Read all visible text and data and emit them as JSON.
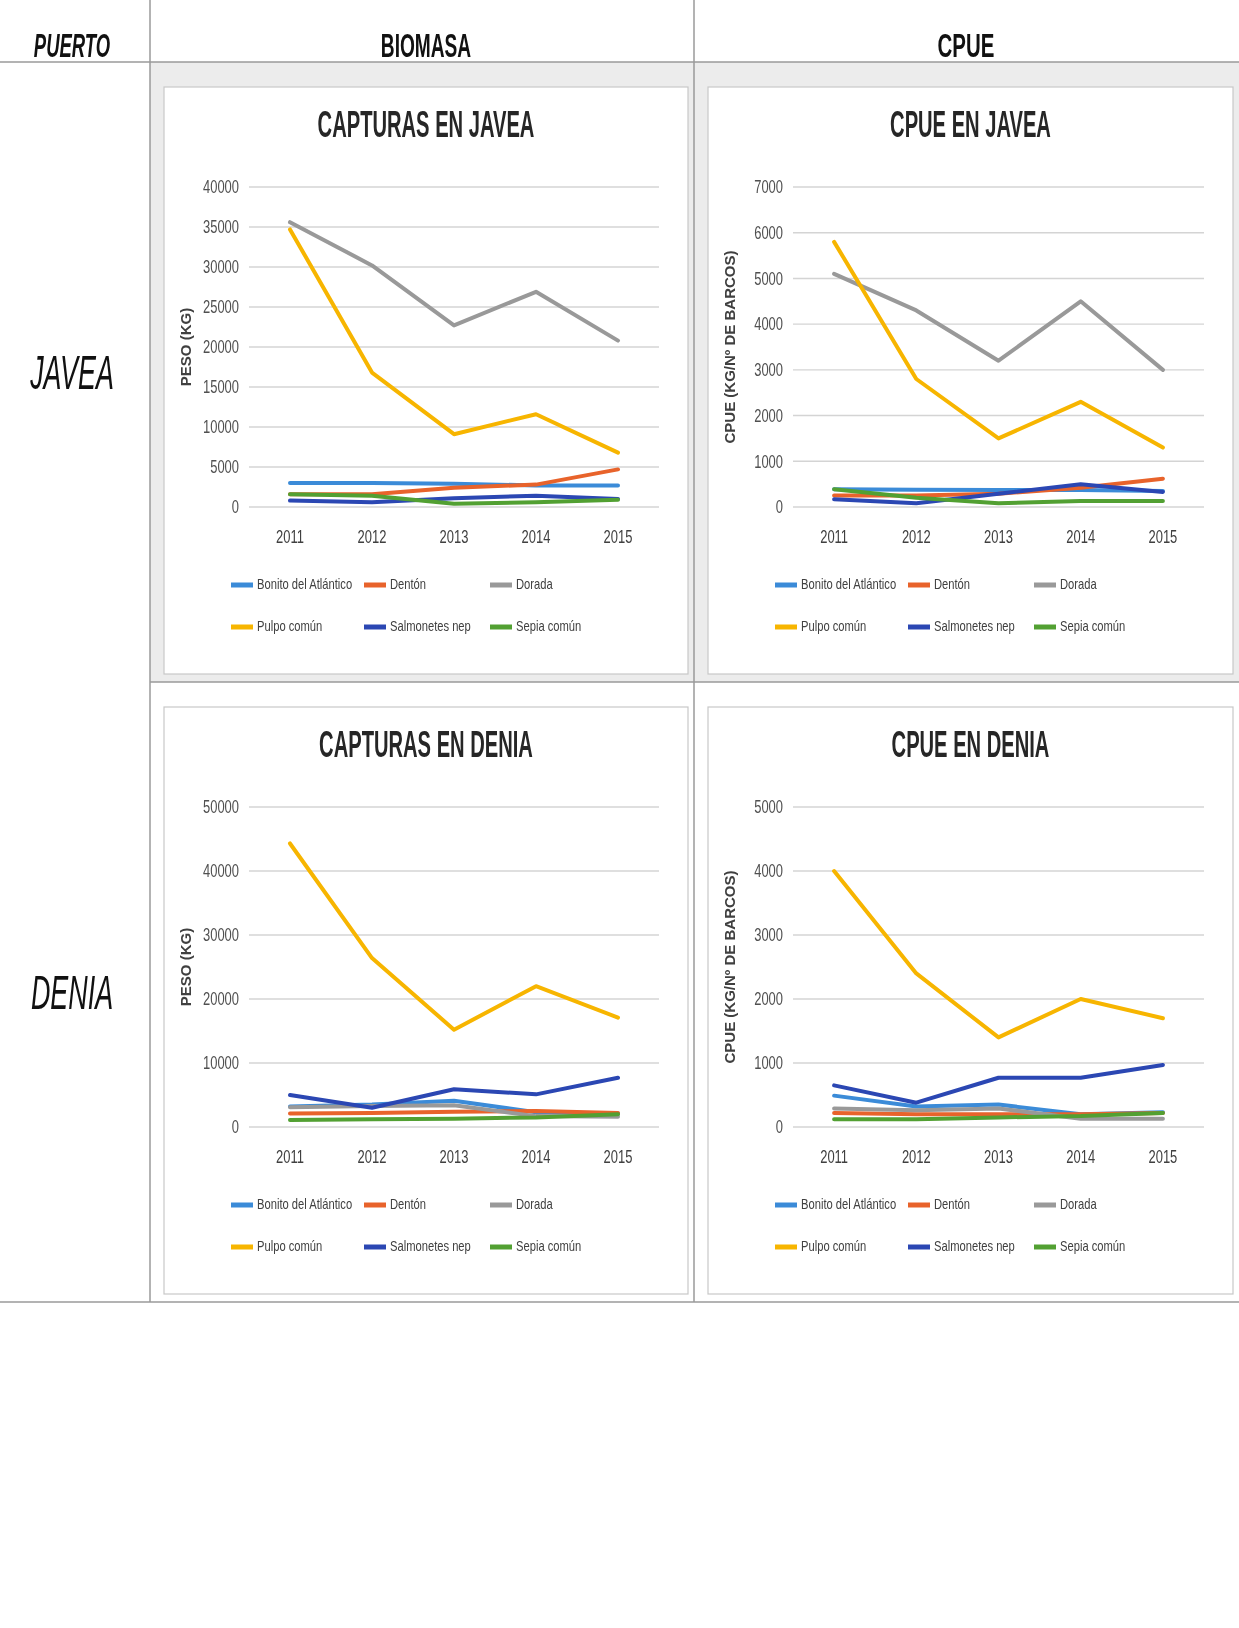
{
  "chart_data": [
    {
      "type": "other",
      "annotations": [
        "PUERTO",
        "BIOMASA",
        "CPUE",
        "JAVEA",
        "DENIA"
      ]
    },
    {
      "type": "line",
      "title": "CAPTURAS EN JAVEA",
      "ylabel": "PESO (KG)",
      "categories": [
        "2011",
        "2012",
        "2013",
        "2014",
        "2015"
      ],
      "ylim": [
        0,
        40000
      ],
      "yticks": [
        0,
        5000,
        10000,
        15000,
        20000,
        25000,
        30000,
        35000,
        40000
      ],
      "grid": "y",
      "legend": "bottom",
      "series": [
        {
          "name": "Bonito del Atlántico",
          "color": "#3b8bd8",
          "values": [
            3000,
            3000,
            2900,
            2700,
            2700
          ]
        },
        {
          "name": "Dentón",
          "color": "#e8632b",
          "values": [
            1600,
            1600,
            2400,
            2800,
            4700
          ]
        },
        {
          "name": "Dorada",
          "color": "#999999",
          "values": [
            35600,
            30200,
            22700,
            26900,
            20800
          ]
        },
        {
          "name": "Pulpo común",
          "color": "#f7b500",
          "values": [
            34700,
            16800,
            9100,
            11600,
            6800
          ]
        },
        {
          "name": "Salmonetes nep",
          "color": "#2b47b3",
          "values": [
            800,
            600,
            1100,
            1400,
            1000
          ]
        },
        {
          "name": "Sepia común",
          "color": "#52a032",
          "values": [
            1600,
            1400,
            400,
            600,
            900
          ]
        }
      ]
    },
    {
      "type": "line",
      "title": "CPUE EN JAVEA",
      "ylabel": "CPUE (KG/Nº DE BARCOS)",
      "categories": [
        "2011",
        "2012",
        "2013",
        "2014",
        "2015"
      ],
      "ylim": [
        0,
        7000
      ],
      "yticks": [
        0,
        1000,
        2000,
        3000,
        4000,
        5000,
        6000,
        7000
      ],
      "grid": "y",
      "legend": "bottom",
      "series": [
        {
          "name": "Bonito del Atlántico",
          "color": "#3b8bd8",
          "values": [
            390,
            380,
            370,
            370,
            350
          ]
        },
        {
          "name": "Dentón",
          "color": "#e8632b",
          "values": [
            250,
            250,
            290,
            420,
            620
          ]
        },
        {
          "name": "Dorada",
          "color": "#999999",
          "values": [
            5100,
            4300,
            3200,
            4500,
            3000
          ]
        },
        {
          "name": "Pulpo común",
          "color": "#f7b500",
          "values": [
            5800,
            2800,
            1500,
            2300,
            1300
          ]
        },
        {
          "name": "Salmonetes nep",
          "color": "#2b47b3",
          "values": [
            170,
            80,
            290,
            500,
            330
          ]
        },
        {
          "name": "Sepia común",
          "color": "#52a032",
          "values": [
            390,
            200,
            80,
            130,
            130
          ]
        }
      ]
    },
    {
      "type": "line",
      "title": "CAPTURAS EN DENIA",
      "ylabel": "PESO (KG)",
      "categories": [
        "2011",
        "2012",
        "2013",
        "2014",
        "2015"
      ],
      "ylim": [
        0,
        50000
      ],
      "yticks": [
        0,
        10000,
        20000,
        30000,
        40000,
        50000
      ],
      "grid": "y",
      "legend": "bottom",
      "series": [
        {
          "name": "Bonito del Atlántico",
          "color": "#3b8bd8",
          "values": [
            3200,
            3500,
            4100,
            2300,
            2100
          ]
        },
        {
          "name": "Dentón",
          "color": "#e8632b",
          "values": [
            2100,
            2200,
            2400,
            2500,
            2200
          ]
        },
        {
          "name": "Dorada",
          "color": "#999999",
          "values": [
            3100,
            3300,
            3400,
            1700,
            1600
          ]
        },
        {
          "name": "Pulpo común",
          "color": "#f7b500",
          "values": [
            44300,
            26400,
            15200,
            22000,
            17100
          ]
        },
        {
          "name": "Salmonetes nep",
          "color": "#2b47b3",
          "values": [
            5000,
            3000,
            5900,
            5100,
            7700
          ]
        },
        {
          "name": "Sepia común",
          "color": "#52a032",
          "values": [
            1100,
            1200,
            1300,
            1500,
            2000
          ]
        }
      ]
    },
    {
      "type": "line",
      "title": "CPUE EN DENIA",
      "ylabel": "CPUE (KG/Nº DE BARCOS)",
      "categories": [
        "2011",
        "2012",
        "2013",
        "2014",
        "2015"
      ],
      "ylim": [
        0,
        5000
      ],
      "yticks": [
        0,
        1000,
        2000,
        3000,
        4000,
        5000
      ],
      "grid": "y",
      "legend": "bottom",
      "series": [
        {
          "name": "Bonito del Atlántico",
          "color": "#3b8bd8",
          "values": [
            490,
            320,
            350,
            200,
            230
          ]
        },
        {
          "name": "Dentón",
          "color": "#e8632b",
          "values": [
            220,
            200,
            200,
            200,
            220
          ]
        },
        {
          "name": "Dorada",
          "color": "#999999",
          "values": [
            290,
            260,
            290,
            130,
            130
          ]
        },
        {
          "name": "Pulpo común",
          "color": "#f7b500",
          "values": [
            4000,
            2400,
            1400,
            2000,
            1700
          ]
        },
        {
          "name": "Salmonetes nep",
          "color": "#2b47b3",
          "values": [
            650,
            380,
            770,
            770,
            970
          ]
        },
        {
          "name": "Sepia común",
          "color": "#52a032",
          "values": [
            120,
            120,
            150,
            170,
            220
          ]
        }
      ]
    }
  ]
}
